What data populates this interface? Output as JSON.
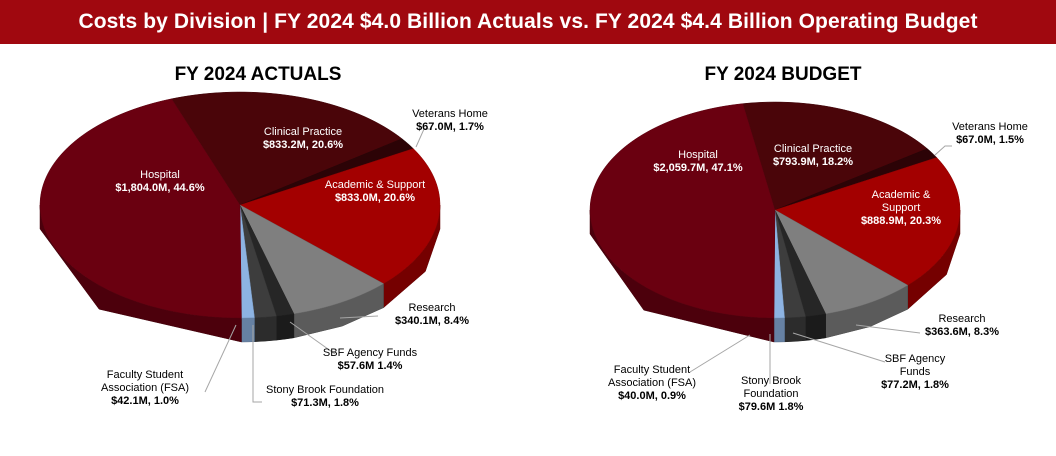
{
  "header": {
    "title": "Costs by Division | FY 2024 $4.0 Billion Actuals vs. FY 2024 $4.4 Billion Operating Budget"
  },
  "colors": {
    "banner": "#a0080f",
    "Clinical Practice": "#4a0509",
    "Veterans Home": "#2c0306",
    "Academic & Support": "#a30000",
    "Research": "#7f7f7f",
    "SBF Agency Funds": "#262626",
    "Stony Brook Foundation": "#3d3d3d",
    "Faculty Student Association (FSA)": "#8db3e2",
    "Hospital": "#6a0010"
  },
  "chart_data": [
    {
      "type": "pie",
      "style": "3d",
      "title": "FY 2024 ACTUALS",
      "slices": [
        {
          "name": "Clinical Practice",
          "label_lines": [
            "Clinical Practice"
          ],
          "value_label": "$833.2M, 20.6%",
          "value": 833.2,
          "percent": 20.6
        },
        {
          "name": "Veterans Home",
          "label_lines": [
            "Veterans Home"
          ],
          "value_label": "$67.0M, 1.7%",
          "value": 67.0,
          "percent": 1.7
        },
        {
          "name": "Academic & Support",
          "label_lines": [
            "Academic & Support"
          ],
          "value_label": "$833.0M, 20.6%",
          "value": 833.0,
          "percent": 20.6
        },
        {
          "name": "Research",
          "label_lines": [
            "Research"
          ],
          "value_label": "$340.1M, 8.4%",
          "value": 340.1,
          "percent": 8.4
        },
        {
          "name": "SBF Agency Funds",
          "label_lines": [
            "SBF Agency Funds"
          ],
          "value_label": "$57.6M 1.4%",
          "value": 57.6,
          "percent": 1.4
        },
        {
          "name": "Stony Brook Foundation",
          "label_lines": [
            "Stony Brook Foundation"
          ],
          "value_label": "$71.3M, 1.8%",
          "value": 71.3,
          "percent": 1.8
        },
        {
          "name": "Faculty Student Association (FSA)",
          "label_lines": [
            "Faculty Student",
            "Association (FSA)"
          ],
          "value_label": "$42.1M, 1.0%",
          "value": 42.1,
          "percent": 1.0
        },
        {
          "name": "Hospital",
          "label_lines": [
            "Hospital"
          ],
          "value_label": "$1,804.0M, 44.6%",
          "value": 1804.0,
          "percent": 44.6
        }
      ]
    },
    {
      "type": "pie",
      "style": "3d",
      "title": "FY 2024 BUDGET",
      "slices": [
        {
          "name": "Clinical Practice",
          "label_lines": [
            "Clinical Practice"
          ],
          "value_label": "$793.9M, 18.2%",
          "value": 793.9,
          "percent": 18.2
        },
        {
          "name": "Veterans Home",
          "label_lines": [
            "Veterans Home"
          ],
          "value_label": "$67.0M, 1.5%",
          "value": 67.0,
          "percent": 1.5
        },
        {
          "name": "Academic & Support",
          "label_lines": [
            "Academic &",
            "Support"
          ],
          "value_label": "$888.9M, 20.3%",
          "value": 888.9,
          "percent": 20.3
        },
        {
          "name": "Research",
          "label_lines": [
            "Research"
          ],
          "value_label": "$363.6M, 8.3%",
          "value": 363.6,
          "percent": 8.3
        },
        {
          "name": "SBF Agency Funds",
          "label_lines": [
            "SBF Agency",
            "Funds"
          ],
          "value_label": "$77.2M, 1.8%",
          "value": 77.2,
          "percent": 1.8
        },
        {
          "name": "Stony Brook Foundation",
          "label_lines": [
            "Stony Brook",
            "Foundation"
          ],
          "value_label": "$79.6M 1.8%",
          "value": 79.6,
          "percent": 1.8
        },
        {
          "name": "Faculty Student Association (FSA)",
          "label_lines": [
            "Faculty Student",
            "Association (FSA)"
          ],
          "value_label": "$40.0M, 0.9%",
          "value": 40.0,
          "percent": 0.9
        },
        {
          "name": "Hospital",
          "label_lines": [
            "Hospital"
          ],
          "value_label": "$2,059.7M, 47.1%",
          "value": 2059.7,
          "percent": 47.1
        }
      ]
    }
  ]
}
